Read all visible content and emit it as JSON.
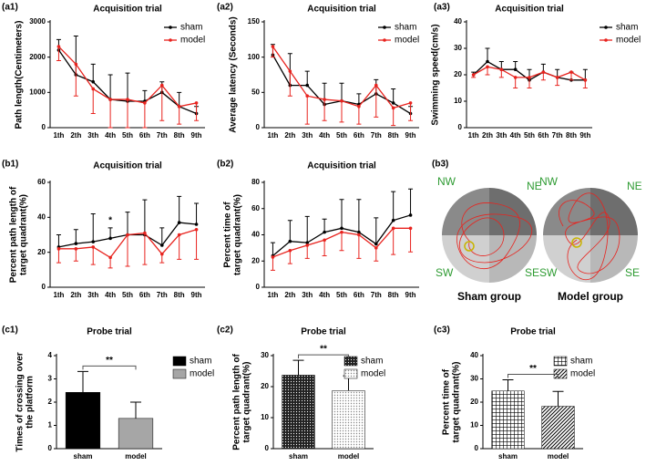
{
  "chart_data": [
    {
      "type": "line",
      "panel": "(a1)",
      "title": "Acquisition trial",
      "ylabel": [
        "Path length(Centimeters)"
      ],
      "categories": [
        "1th",
        "2th",
        "3th",
        "4th",
        "5th",
        "6th",
        "7th",
        "8th",
        "9th"
      ],
      "ylim": [
        0,
        3000
      ],
      "yticks": [
        0,
        1000,
        2000,
        3000
      ],
      "legend": "top-right",
      "series": [
        {
          "name": "sham",
          "color": "#000000",
          "error_direction": "up",
          "values": [
            2200,
            1500,
            1300,
            800,
            750,
            750,
            1000,
            600,
            400
          ],
          "errors": [
            300,
            1100,
            500,
            700,
            800,
            300,
            300,
            400,
            200
          ]
        },
        {
          "name": "model",
          "color": "#e8231e",
          "error_direction": "down",
          "values": [
            2300,
            1800,
            1100,
            800,
            800,
            700,
            1200,
            600,
            700
          ],
          "errors": [
            400,
            900,
            700,
            800,
            800,
            700,
            1000,
            500,
            500
          ]
        }
      ]
    },
    {
      "type": "line",
      "panel": "(a2)",
      "title": "Acquisition trial",
      "ylabel": [
        "Average latency (Seconds)"
      ],
      "categories": [
        "1th",
        "2th",
        "3th",
        "4th",
        "5th",
        "6th",
        "7th",
        "8th",
        "9th"
      ],
      "ylim": [
        0,
        150
      ],
      "yticks": [
        0,
        50,
        100,
        150
      ],
      "legend": "top-right",
      "series": [
        {
          "name": "sham",
          "color": "#000000",
          "error_direction": "up",
          "values": [
            103,
            60,
            60,
            33,
            38,
            33,
            48,
            35,
            20
          ],
          "errors": [
            15,
            45,
            20,
            30,
            25,
            15,
            20,
            20,
            10
          ]
        },
        {
          "name": "model",
          "color": "#e8231e",
          "error_direction": "down",
          "values": [
            115,
            80,
            45,
            40,
            38,
            30,
            60,
            28,
            35
          ],
          "errors": [
            15,
            35,
            40,
            30,
            30,
            25,
            45,
            25,
            25
          ]
        }
      ]
    },
    {
      "type": "line",
      "panel": "(a3)",
      "title": "Acquisition trial",
      "ylabel": [
        "Swimming speed(cm/s)"
      ],
      "categories": [
        "1th",
        "2th",
        "3th",
        "4th",
        "5th",
        "6th",
        "7th",
        "8th",
        "9th"
      ],
      "ylim": [
        0,
        40
      ],
      "yticks": [
        0,
        10,
        20,
        30,
        40
      ],
      "legend": "outside-right",
      "series": [
        {
          "name": "sham",
          "color": "#000000",
          "error_direction": "up",
          "values": [
            20,
            25,
            22,
            22,
            18,
            21,
            19,
            18,
            18
          ],
          "errors": [
            1,
            5,
            3,
            3,
            4,
            3,
            3,
            3,
            4
          ]
        },
        {
          "name": "model",
          "color": "#e8231e",
          "error_direction": "down",
          "values": [
            20,
            23,
            22,
            19,
            19,
            21,
            19,
            21,
            18
          ],
          "errors": [
            1,
            3,
            3,
            4,
            4,
            3,
            3,
            3,
            3
          ]
        }
      ]
    },
    {
      "type": "line",
      "panel": "(b1)",
      "title": "Acquisition trial",
      "ylabel": [
        "Percent path length of",
        "target quadrant(%)"
      ],
      "annotation": "*",
      "categories": [
        "1th",
        "2th",
        "3th",
        "4th",
        "5th",
        "6th",
        "7th",
        "8th",
        "9th"
      ],
      "ylim": [
        0,
        60
      ],
      "yticks": [
        0,
        20,
        40,
        60
      ],
      "series": [
        {
          "name": "sham",
          "color": "#000000",
          "error_direction": "up",
          "values": [
            23,
            25,
            26,
            28,
            30,
            30,
            24,
            37,
            36
          ],
          "errors": [
            7,
            8,
            16,
            6,
            13,
            20,
            10,
            15,
            12
          ]
        },
        {
          "name": "model",
          "color": "#e8231e",
          "error_direction": "down",
          "values": [
            22,
            22,
            23,
            17,
            30,
            31,
            19,
            30,
            33
          ],
          "errors": [
            8,
            7,
            10,
            6,
            18,
            18,
            5,
            14,
            17
          ]
        }
      ]
    },
    {
      "type": "line",
      "panel": "(b2)",
      "title": "Acquisition trial",
      "ylabel": [
        "Percent time of",
        "target quadrant(%)"
      ],
      "categories": [
        "1th",
        "2th",
        "3th",
        "4th",
        "5th",
        "6th",
        "7th",
        "8th",
        "9th"
      ],
      "ylim": [
        0,
        80
      ],
      "yticks": [
        0,
        20,
        40,
        60,
        80
      ],
      "series": [
        {
          "name": "sham",
          "color": "#000000",
          "error_direction": "up",
          "values": [
            24,
            35,
            34,
            42,
            45,
            42,
            33,
            51,
            55
          ],
          "errors": [
            10,
            16,
            20,
            10,
            22,
            25,
            20,
            22,
            20
          ]
        },
        {
          "name": "model",
          "color": "#e8231e",
          "error_direction": "down",
          "values": [
            23,
            28,
            32,
            36,
            42,
            40,
            30,
            45,
            45
          ],
          "errors": [
            10,
            10,
            10,
            12,
            14,
            18,
            10,
            20,
            18
          ]
        }
      ]
    },
    {
      "type": "bar",
      "panel": "(c1)",
      "title": "Probe trial",
      "ylabel": [
        "Times of crossing over",
        "the platform"
      ],
      "annotation": "**",
      "categories": [
        "sham",
        "model"
      ],
      "values": [
        2.42,
        1.3
      ],
      "errors": [
        0.9,
        0.7
      ],
      "colors": [
        "#000000",
        "#a6a6a6"
      ],
      "patterns": [
        "solid",
        "solid"
      ],
      "ylim": [
        0,
        4
      ],
      "yticks": [
        0,
        1,
        2,
        3,
        4
      ],
      "legend": "outside-right"
    },
    {
      "type": "bar",
      "panel": "(c2)",
      "title": "Probe trial",
      "ylabel": [
        "Percent path length of",
        "target quadrant(%)"
      ],
      "annotation": "**",
      "categories": [
        "sham",
        "model"
      ],
      "values": [
        23.7,
        18.7
      ],
      "errors": [
        4.8,
        4.8
      ],
      "colors": [
        "#333333",
        "#999999"
      ],
      "patterns": [
        "dense-dots",
        "sparse-dots"
      ],
      "ylim": [
        0,
        30
      ],
      "yticks": [
        0,
        10,
        20,
        30
      ],
      "legend": "top-right"
    },
    {
      "type": "bar",
      "panel": "(c3)",
      "title": "Probe trial",
      "ylabel": [
        "Percent time of",
        "target quadrant(%)"
      ],
      "annotation": "**",
      "categories": [
        "sham",
        "model"
      ],
      "values": [
        24.8,
        18.2
      ],
      "errors": [
        4.8,
        6.4
      ],
      "colors": [
        "#000000",
        "#000000"
      ],
      "patterns": [
        "grid",
        "diagonal"
      ],
      "ylim": [
        0,
        40
      ],
      "yticks": [
        0,
        10,
        20,
        30,
        40
      ],
      "legend": "top-right"
    }
  ],
  "b3": {
    "panel": "(b3)",
    "quadrants": [
      "NW",
      "NE",
      "SW",
      "SE"
    ],
    "groups": [
      "Sham group",
      "Model group"
    ]
  }
}
